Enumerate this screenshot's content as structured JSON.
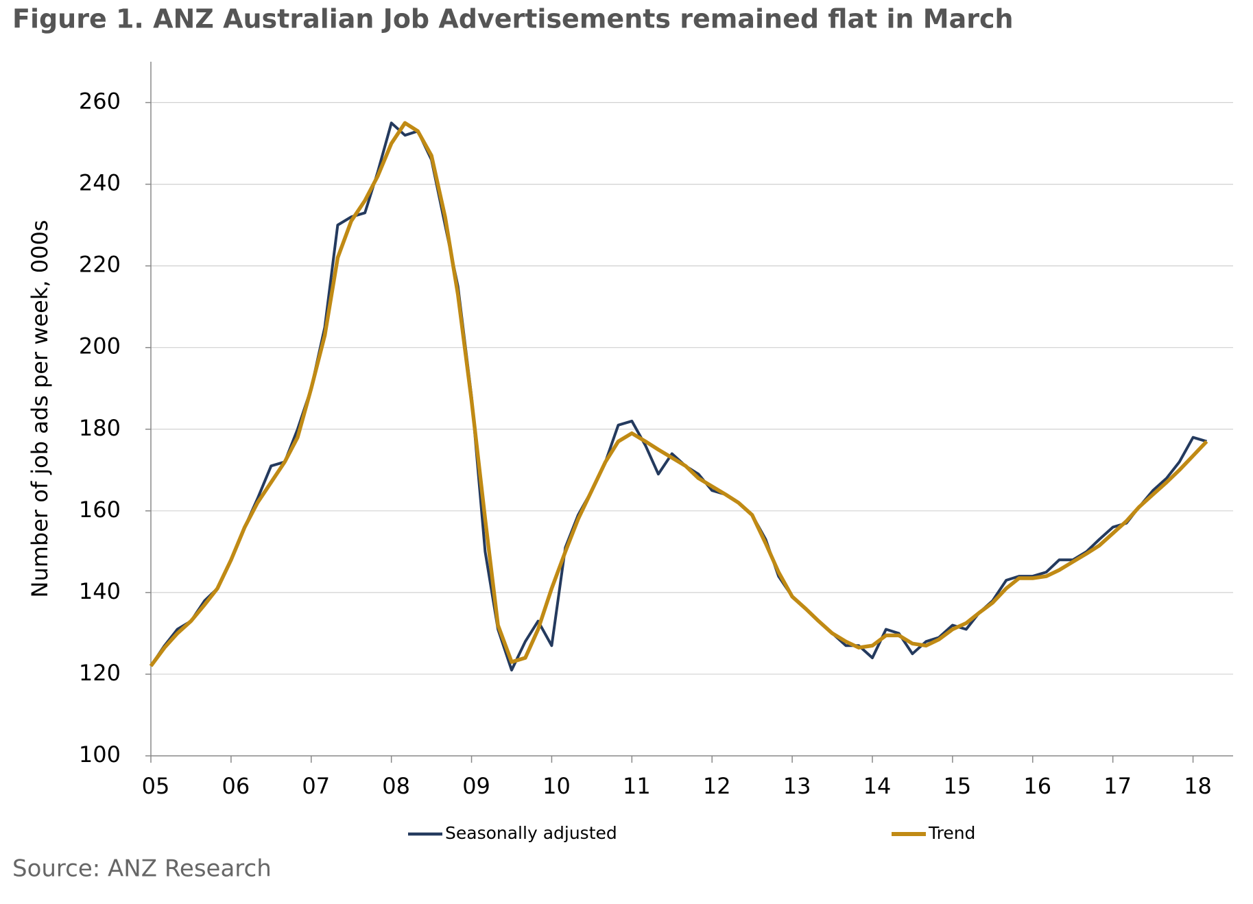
{
  "chart_data": {
    "type": "line",
    "title": "Figure 1. ANZ Australian Job Advertisements remained flat in March",
    "y_label": "Number of job ads per week, 000s",
    "source": "Source: ANZ Research",
    "x": [
      2005,
      2005.17,
      2005.33,
      2005.5,
      2005.67,
      2005.83,
      2006,
      2006.17,
      2006.33,
      2006.5,
      2006.67,
      2006.83,
      2007,
      2007.17,
      2007.33,
      2007.5,
      2007.67,
      2007.83,
      2008,
      2008.17,
      2008.33,
      2008.5,
      2008.67,
      2008.83,
      2009,
      2009.17,
      2009.33,
      2009.5,
      2009.67,
      2009.83,
      2010,
      2010.17,
      2010.33,
      2010.5,
      2010.67,
      2010.83,
      2011,
      2011.17,
      2011.33,
      2011.5,
      2011.67,
      2011.83,
      2012,
      2012.17,
      2012.33,
      2012.5,
      2012.67,
      2012.83,
      2013,
      2013.17,
      2013.33,
      2013.5,
      2013.67,
      2013.83,
      2014,
      2014.17,
      2014.33,
      2014.5,
      2014.67,
      2014.83,
      2015,
      2015.17,
      2015.33,
      2015.5,
      2015.67,
      2015.83,
      2016,
      2016.17,
      2016.33,
      2016.5,
      2016.67,
      2016.83,
      2017,
      2017.17,
      2017.33,
      2017.5,
      2017.67,
      2017.83,
      2018,
      2018.17
    ],
    "series": [
      {
        "name": "Seasonally adjusted",
        "color": "#243a5e",
        "values": [
          122,
          127,
          131,
          133,
          138,
          141,
          148,
          156,
          163,
          171,
          172,
          180,
          190,
          205,
          230,
          232,
          233,
          243,
          255,
          252,
          253,
          246,
          230,
          215,
          188,
          150,
          131,
          121,
          128,
          133,
          127,
          151,
          159,
          165,
          172,
          181,
          182,
          176,
          169,
          174,
          171,
          169,
          165,
          164,
          162,
          159,
          153,
          144,
          139,
          136,
          133,
          130,
          127,
          127,
          124,
          131,
          130,
          125,
          128,
          129,
          132,
          131,
          135,
          138,
          143,
          144,
          144,
          145,
          148,
          148,
          150,
          153,
          156,
          157,
          161,
          165,
          168,
          172,
          178,
          177
        ]
      },
      {
        "name": "Trend",
        "color": "#c08a14",
        "values": [
          122,
          126.5,
          130,
          133,
          137,
          141,
          148,
          156,
          162,
          167,
          172,
          178,
          190,
          203,
          222,
          231,
          236,
          242,
          250,
          255,
          253,
          247,
          232,
          213,
          187,
          158,
          132,
          123,
          124,
          131,
          141,
          150,
          158,
          165,
          172,
          177,
          179,
          177,
          175,
          173,
          171,
          168,
          166,
          164,
          162,
          159,
          152,
          145,
          139,
          136,
          133,
          130,
          128,
          126.5,
          127,
          129.5,
          129.5,
          127.5,
          127,
          128.5,
          131,
          132.5,
          135,
          137.5,
          141,
          143.5,
          143.5,
          144,
          145.5,
          147.5,
          149.5,
          151.5,
          154.5,
          157.5,
          161,
          164,
          167,
          170,
          173.5,
          177
        ]
      }
    ],
    "xlim": [
      2005,
      2018.5
    ],
    "xticks": [
      {
        "value": 2005,
        "label": "05"
      },
      {
        "value": 2006,
        "label": "06"
      },
      {
        "value": 2007,
        "label": "07"
      },
      {
        "value": 2008,
        "label": "08"
      },
      {
        "value": 2009,
        "label": "09"
      },
      {
        "value": 2010,
        "label": "10"
      },
      {
        "value": 2011,
        "label": "11"
      },
      {
        "value": 2012,
        "label": "12"
      },
      {
        "value": 2013,
        "label": "13"
      },
      {
        "value": 2014,
        "label": "14"
      },
      {
        "value": 2015,
        "label": "15"
      },
      {
        "value": 2016,
        "label": "16"
      },
      {
        "value": 2017,
        "label": "17"
      },
      {
        "value": 2018,
        "label": "18"
      }
    ],
    "ylim": [
      100,
      270
    ],
    "yticks": [
      100,
      120,
      140,
      160,
      180,
      200,
      220,
      240,
      260
    ],
    "grid": true,
    "legend": "bottom"
  }
}
